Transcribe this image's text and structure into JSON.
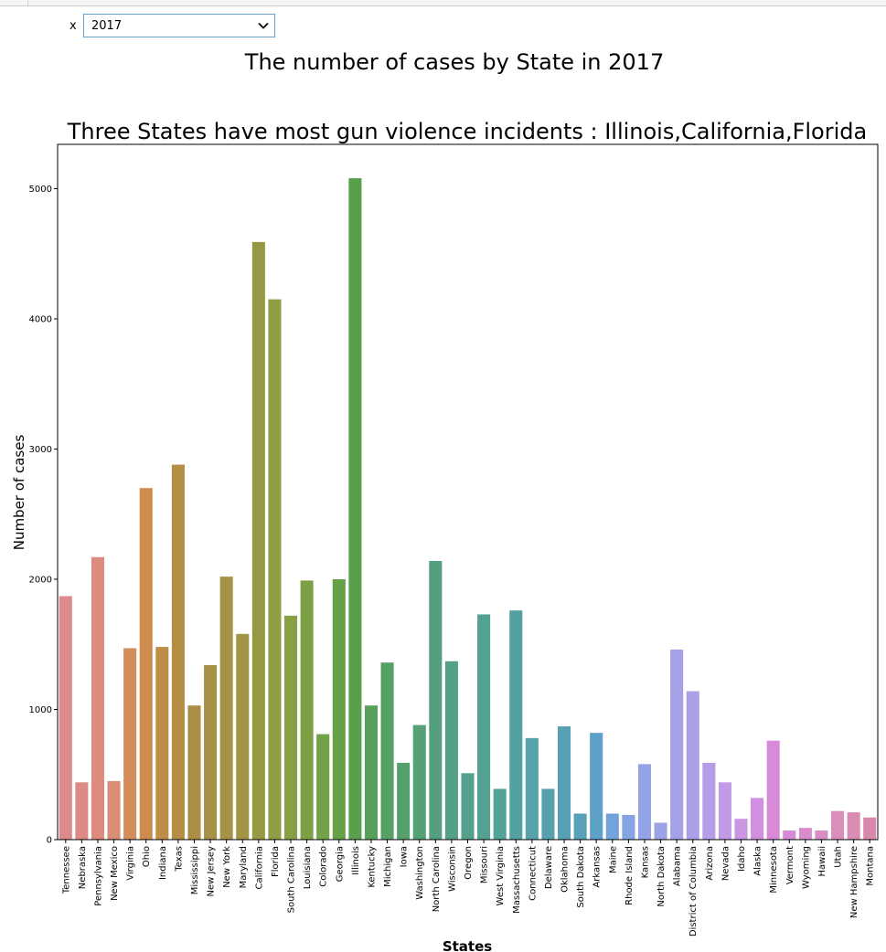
{
  "widget": {
    "label": "x",
    "selected": "2017"
  },
  "chart_data": {
    "type": "bar",
    "suptitle": "The number of cases by State in 2017",
    "title": "Three States have most gun violence incidents : Illinois,California,Florida",
    "xlabel": "States",
    "ylabel": "Number of cases",
    "ylim": [
      0,
      5340
    ],
    "yticks": [
      0,
      1000,
      2000,
      3000,
      4000,
      5000
    ],
    "grid": false,
    "categories": [
      "Tennessee",
      "Nebraska",
      "Pennsylvania",
      "New Mexico",
      "Virginia",
      "Ohio",
      "Indiana",
      "Texas",
      "Mississippi",
      "New Jersey",
      "New York",
      "Maryland",
      "California",
      "Florida",
      "South Carolina",
      "Louisiana",
      "Colorado",
      "Georgia",
      "Illinois",
      "Kentucky",
      "Michigan",
      "Iowa",
      "Washington",
      "North Carolina",
      "Wisconsin",
      "Oregon",
      "Missouri",
      "West Virginia",
      "Massachusetts",
      "Connecticut",
      "Delaware",
      "Oklahoma",
      "South Dakota",
      "Arkansas",
      "Maine",
      "Rhode Island",
      "Kansas",
      "North Dakota",
      "Alabama",
      "District of Columbia",
      "Arizona",
      "Nevada",
      "Idaho",
      "Alaska",
      "Minnesota",
      "Vermont",
      "Wyoming",
      "Hawaii",
      "Utah",
      "New Hampshire",
      "Montana"
    ],
    "values": [
      1870,
      440,
      2170,
      450,
      1470,
      2700,
      1480,
      2880,
      1030,
      1340,
      2020,
      1580,
      4590,
      4150,
      1720,
      1990,
      810,
      2000,
      5080,
      1030,
      1360,
      590,
      880,
      2140,
      1370,
      510,
      1730,
      390,
      1760,
      780,
      390,
      870,
      200,
      820,
      200,
      190,
      580,
      130,
      1460,
      1140,
      590,
      440,
      160,
      320,
      760,
      70,
      90,
      70,
      220,
      210,
      170
    ],
    "colors": [
      "#dd8a8c",
      "#de8a84",
      "#dc8b7e",
      "#d98d74",
      "#d48c5a",
      "#cd8c4c",
      "#bf8d48",
      "#b58e46",
      "#aa8e45",
      "#a69146",
      "#a49245",
      "#a09546",
      "#969843",
      "#8f9d44",
      "#899f46",
      "#7ca145",
      "#72a147",
      "#66a049",
      "#5aa04c",
      "#58a059",
      "#56a066",
      "#55a06e",
      "#55a074",
      "#54a07e",
      "#54a086",
      "#54a08c",
      "#53a192",
      "#53a297",
      "#52a1a0",
      "#55a2a8",
      "#56a1ad",
      "#57a1b4",
      "#58a1b9",
      "#5ea1c8",
      "#74a3dc",
      "#85a4e3",
      "#92a4e5",
      "#9ca4e6",
      "#a5a1e7",
      "#ad9fe7",
      "#b69de7",
      "#c29be6",
      "#ca96e4",
      "#d28fe1",
      "#d68ad8",
      "#d68bd4",
      "#d88ccc",
      "#d88dc4",
      "#d98ebb",
      "#da8cb4",
      "#d98aac"
    ]
  }
}
